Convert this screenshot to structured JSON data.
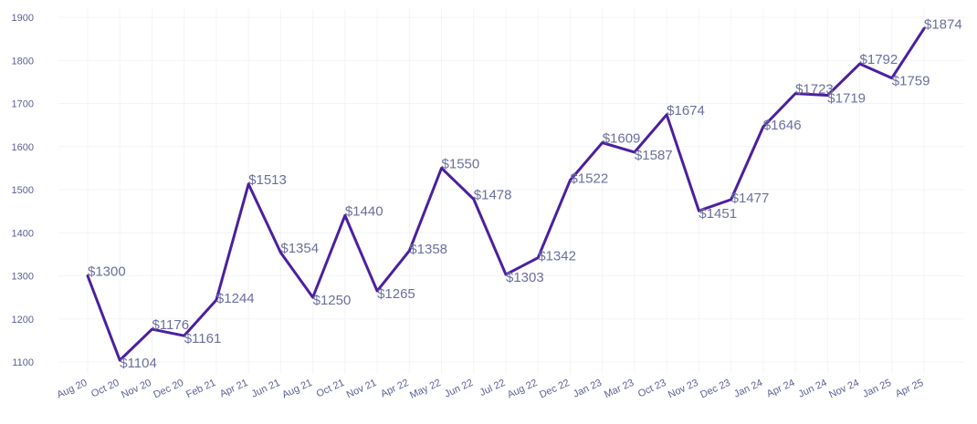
{
  "chart_data": {
    "type": "line",
    "title": "",
    "xlabel": "",
    "ylabel": "",
    "ylim": [
      1075,
      1905
    ],
    "yticks": [
      1100,
      1200,
      1300,
      1400,
      1500,
      1600,
      1700,
      1800,
      1900
    ],
    "grid": true,
    "legend": "none",
    "line_color": "#4b1fa0",
    "label_prefix": "$",
    "series": [
      {
        "categories": [
          "Aug 20",
          "Oct 20",
          "Nov 20",
          "Dec 20",
          "Feb 21",
          "Apr 21",
          "Jun 21",
          "Aug 21",
          "Oct 21",
          "Nov 21",
          "Apr 22",
          "May 22",
          "Jun 22",
          "Jul 22",
          "Aug 22",
          "Dec 22",
          "Jan 23",
          "Mar 23",
          "Oct 23",
          "Nov 23",
          "Dec 23",
          "Jan 24",
          "Apr 24",
          "Jun 24",
          "Nov 24",
          "Jan 25",
          "Apr 25"
        ],
        "values": [
          1300,
          1104,
          1176,
          1161,
          1244,
          1513,
          1354,
          1250,
          1440,
          1265,
          1358,
          1550,
          1478,
          1303,
          1342,
          1522,
          1609,
          1587,
          1674,
          1451,
          1477,
          1646,
          1723,
          1719,
          1792,
          1759,
          1874
        ]
      }
    ]
  }
}
